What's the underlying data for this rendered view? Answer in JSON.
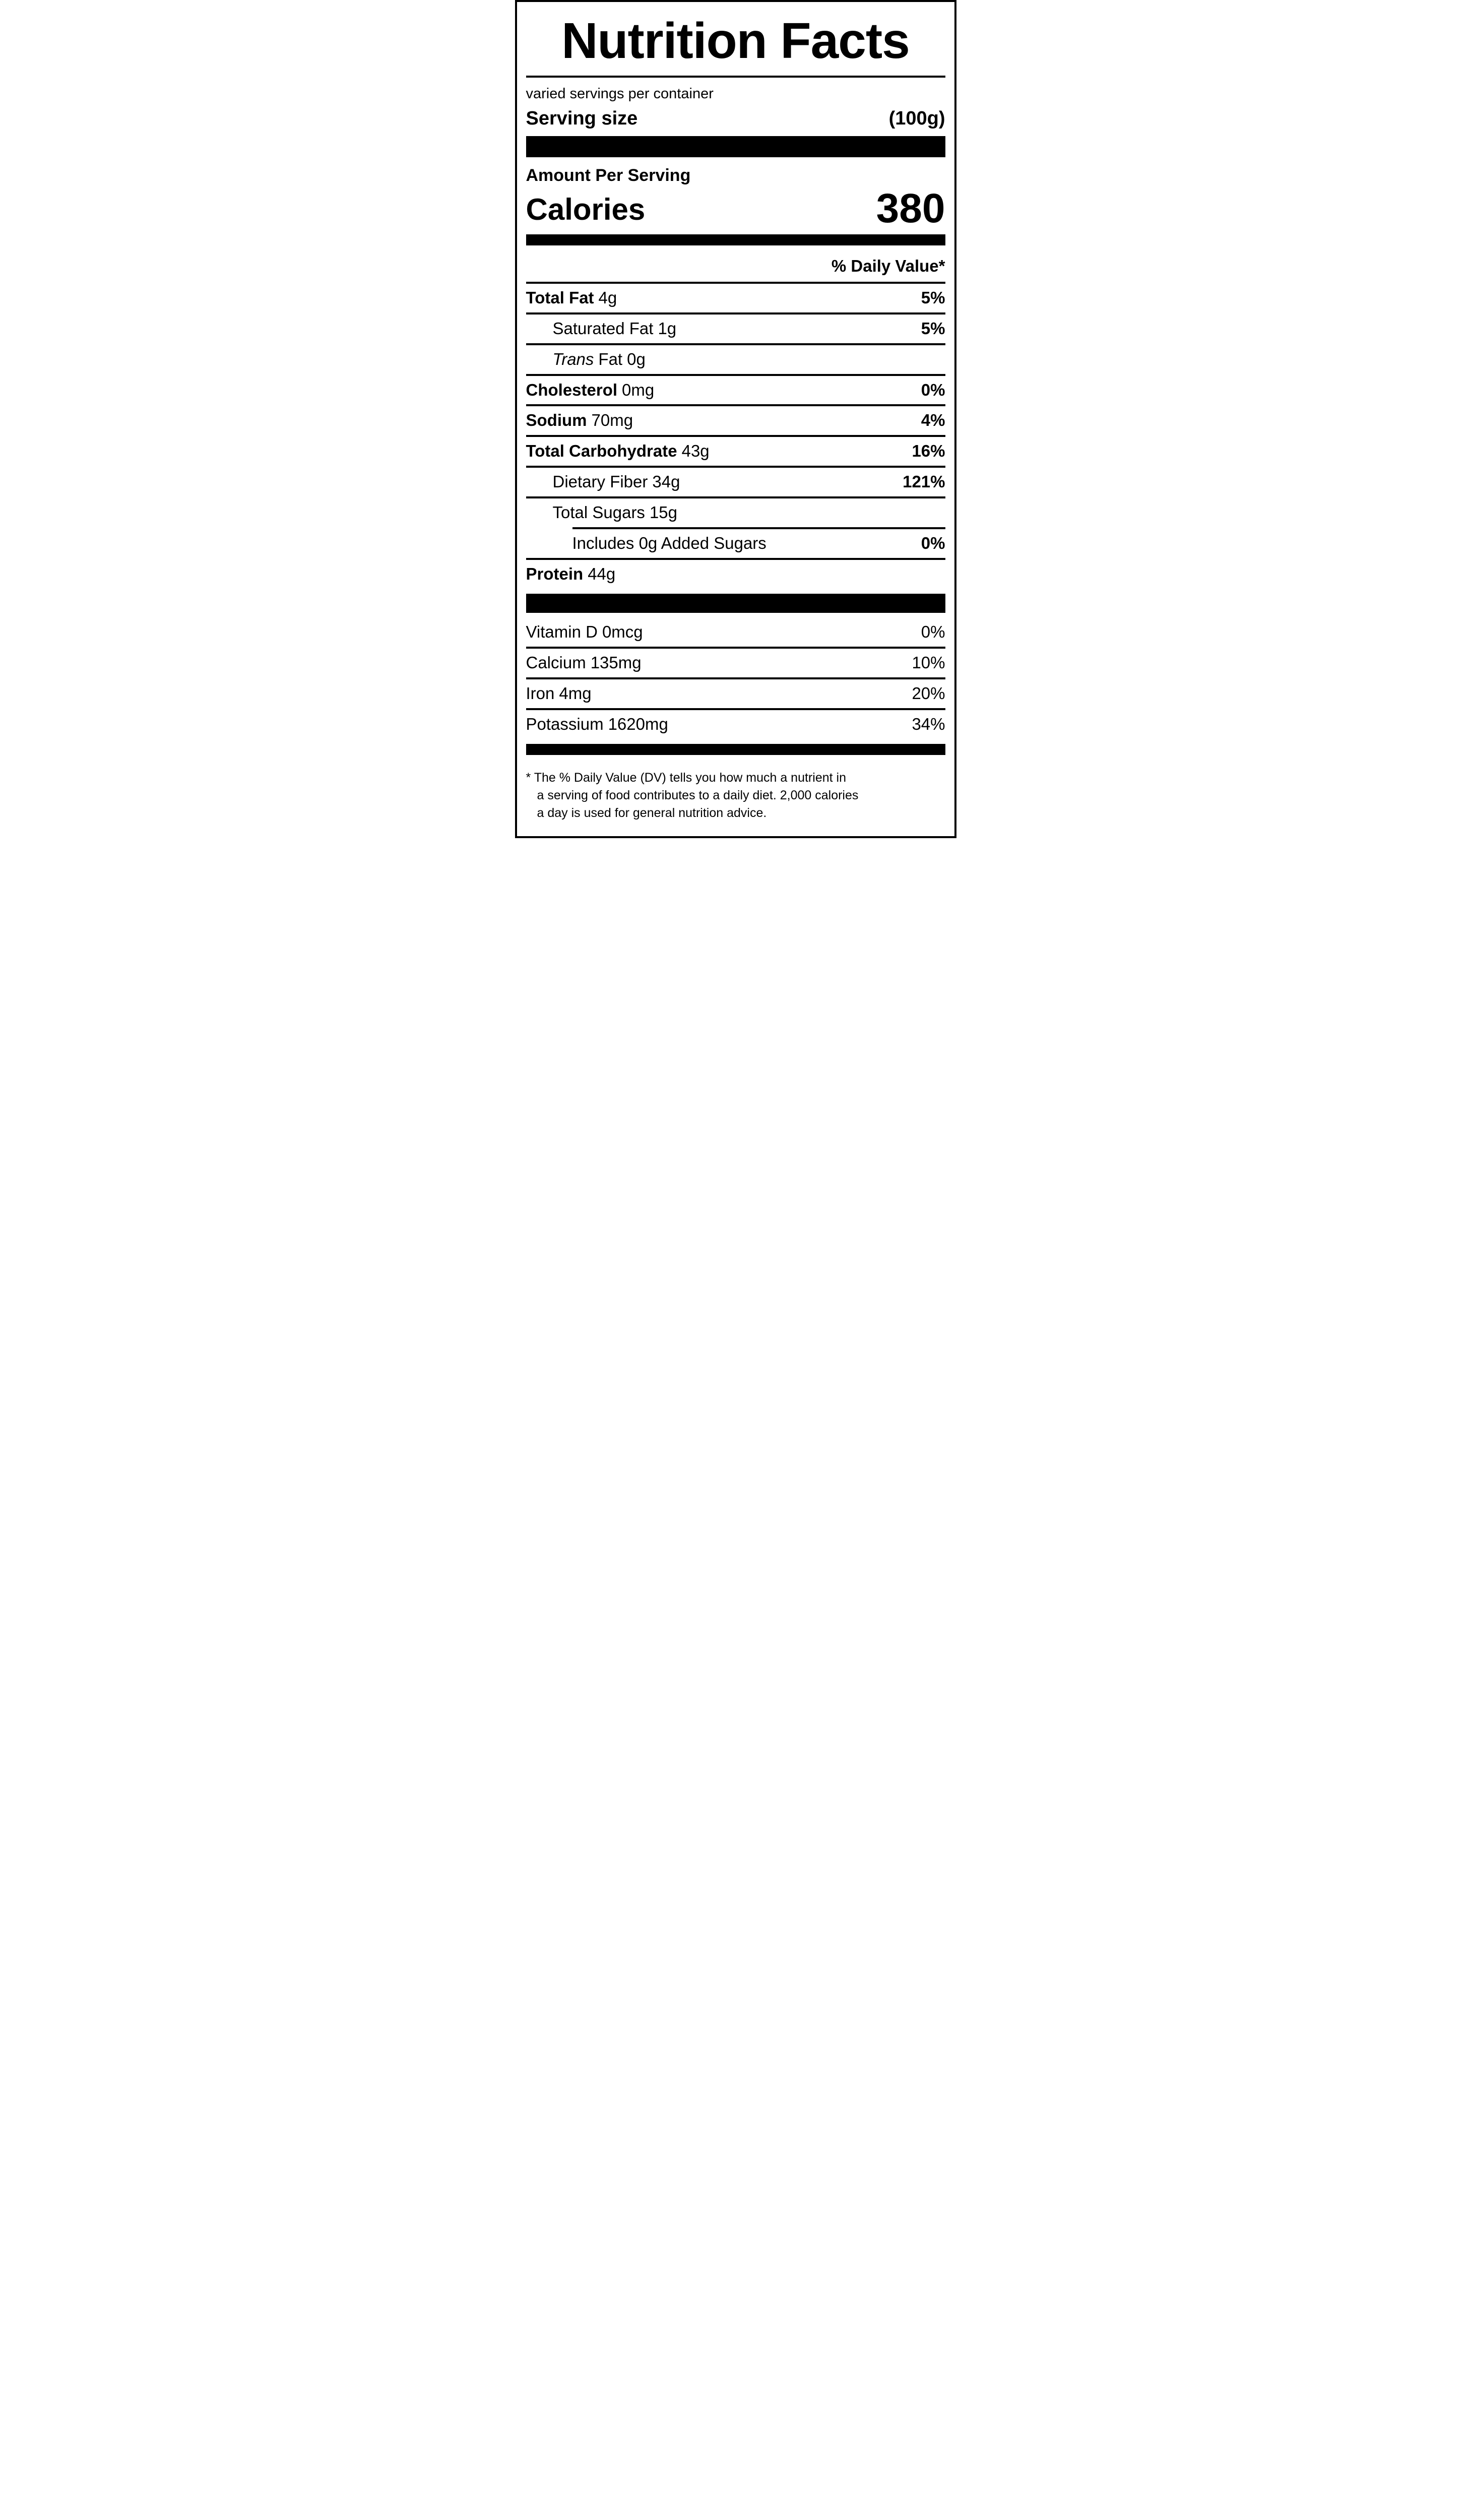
{
  "colors": {
    "ink": "#000000",
    "paper": "#ffffff"
  },
  "label": {
    "title": "Nutrition Facts",
    "servings_per_container": "varied servings per container",
    "serving_size_label": "Serving size",
    "serving_size_value": "(100g)",
    "amount_per_serving": "Amount Per Serving",
    "calories_label": "Calories",
    "calories_value": "380",
    "daily_value_header": "% Daily Value*",
    "nutrients": [
      {
        "name": "Total Fat",
        "amount": "4g",
        "dv": "5%"
      },
      {
        "name": "Saturated Fat",
        "amount": "1g",
        "dv": "5%"
      },
      {
        "name_italic": "Trans",
        "name": "Fat",
        "amount": "0g",
        "dv": ""
      },
      {
        "name": "Cholesterol",
        "amount": "0mg",
        "dv": "0%"
      },
      {
        "name": "Sodium",
        "amount": "70mg",
        "dv": "4%"
      },
      {
        "name": "Total Carbohydrate",
        "amount": "43g",
        "dv": "16%"
      },
      {
        "name": "Dietary Fiber",
        "amount": "34g",
        "dv": "121%"
      },
      {
        "name": "Total Sugars",
        "amount": "15g",
        "dv": ""
      },
      {
        "name": "Includes 0g Added Sugars",
        "amount": "",
        "dv": "0%"
      },
      {
        "name": "Protein",
        "amount": "44g",
        "dv": ""
      }
    ],
    "vitamins": [
      {
        "name": "Vitamin D",
        "amount": "0mcg",
        "dv": "0%"
      },
      {
        "name": "Calcium",
        "amount": "135mg",
        "dv": "10%"
      },
      {
        "name": "Iron",
        "amount": "4mg",
        "dv": "20%"
      },
      {
        "name": "Potassium",
        "amount": "1620mg",
        "dv": "34%"
      }
    ],
    "footnote_lines": [
      "* The % Daily Value (DV) tells you how much a nutrient in",
      "a serving of food contributes to a daily diet. 2,000 calories",
      "a day is used for general nutrition advice."
    ]
  }
}
